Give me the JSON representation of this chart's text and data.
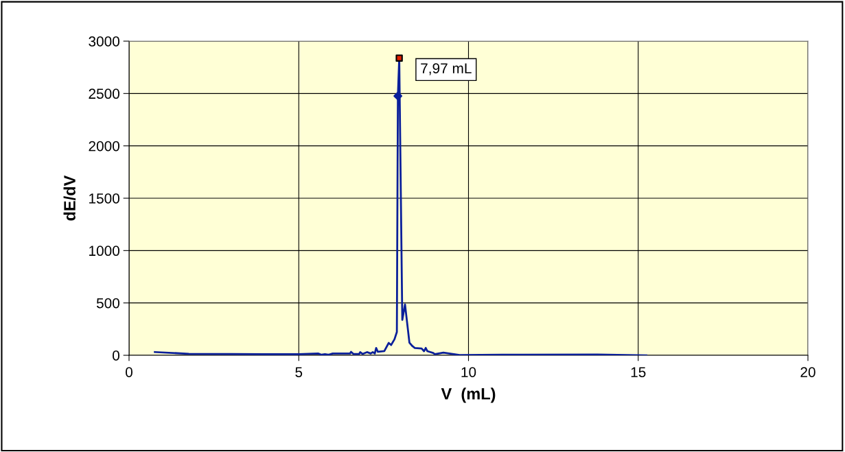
{
  "chart_data": {
    "type": "line",
    "xlabel": "V  (mL)",
    "ylabel": "dE/dV",
    "xlim": [
      0,
      20
    ],
    "xticks": [
      0,
      5,
      10,
      15,
      20
    ],
    "ylim": [
      0,
      3000
    ],
    "yticks": [
      0,
      500,
      1000,
      1500,
      2000,
      2500,
      3000
    ],
    "grid": true,
    "legend": false,
    "series": [
      {
        "color": "#0a1f9a",
        "marker": "none",
        "x": [
          0.76,
          1.76,
          3.0,
          4.0,
          5.0,
          5.57,
          5.67,
          5.77,
          5.87,
          6.0,
          6.51,
          6.54,
          6.61,
          6.78,
          6.81,
          6.88,
          7.01,
          7.12,
          7.18,
          7.24,
          7.28,
          7.33,
          7.52,
          7.65,
          7.72,
          7.82,
          7.89,
          7.92,
          7.96,
          8.05,
          8.13,
          8.26,
          8.35,
          8.42,
          8.62,
          8.69,
          8.74,
          8.79,
          8.96,
          9.01,
          9.26,
          9.74,
          11.0,
          13.8,
          15.24
        ],
        "values": [
          31,
          14,
          12,
          10,
          10,
          17,
          5,
          11,
          5,
          17,
          17,
          33,
          13,
          13,
          30,
          13,
          30,
          17,
          30,
          17,
          70,
          33,
          40,
          118,
          98,
          153,
          223,
          2476,
          2838,
          338,
          485,
          120,
          87,
          70,
          65,
          39,
          70,
          39,
          22,
          11,
          26,
          3,
          5,
          8,
          0
        ]
      },
      {
        "type": "scatter",
        "color": "#0a1f9a",
        "marker": "diamond",
        "x": [
          7.92
        ],
        "values": [
          2476
        ]
      },
      {
        "type": "scatter",
        "color": "#e02000",
        "marker": "square",
        "x": [
          7.96
        ],
        "values": [
          2838
        ]
      }
    ],
    "annotations": [
      {
        "text": "7,97 mL",
        "x": 7.96,
        "y": 2838
      }
    ]
  }
}
